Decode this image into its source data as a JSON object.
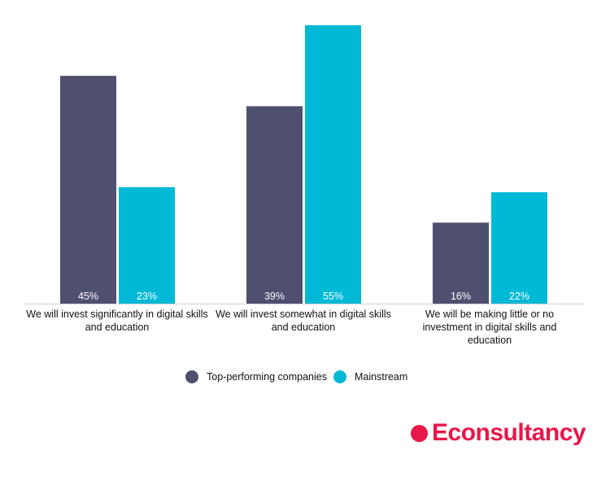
{
  "chart_data": {
    "type": "bar",
    "categories": [
      "We will invest significantly in digital skills and education",
      "We will invest somewhat in digital skills and education",
      "We will be making little or no investment in digital skills and education"
    ],
    "series": [
      {
        "name": "Top-performing companies",
        "values": [
          45,
          39,
          16
        ],
        "labels": [
          "45%",
          "39%",
          "16%"
        ],
        "color": "#4f4f70"
      },
      {
        "name": "Mainstream",
        "values": [
          23,
          55,
          22
        ],
        "labels": [
          "23%",
          "55%",
          "22%"
        ],
        "color": "#00b9d6"
      }
    ],
    "ylim": [
      0,
      55
    ],
    "grid": false,
    "legend_position": "bottom",
    "title": "",
    "xlabel": "",
    "ylabel": ""
  },
  "branding": {
    "logo_text": "Econsultancy",
    "logo_color": "#e8174a"
  }
}
